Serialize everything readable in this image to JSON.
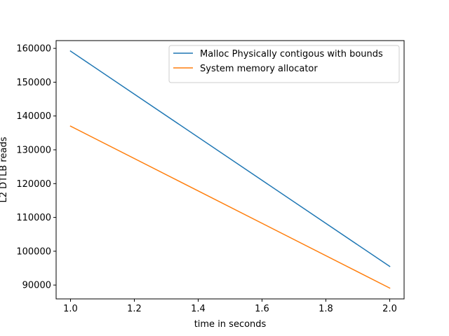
{
  "chart_data": {
    "type": "line",
    "xlabel": "time in seconds",
    "ylabel": "L2 DTLB reads",
    "xlim": [
      0.955,
      2.045
    ],
    "ylim": [
      85900,
      162300
    ],
    "xticks": [
      1.0,
      1.2,
      1.4,
      1.6,
      1.8,
      2.0
    ],
    "xtick_labels": [
      "1.0",
      "1.2",
      "1.4",
      "1.6",
      "1.8",
      "2.0"
    ],
    "yticks": [
      90000,
      100000,
      110000,
      120000,
      130000,
      140000,
      150000,
      160000
    ],
    "ytick_labels": [
      "90000",
      "100000",
      "110000",
      "120000",
      "130000",
      "140000",
      "150000",
      "160000"
    ],
    "legend_position": "top-right",
    "grid": false,
    "series": [
      {
        "name": "Malloc Physically contigous with bounds",
        "color": "#1f77b4",
        "x": [
          1.0,
          2.0
        ],
        "y": [
          159200,
          95500
        ]
      },
      {
        "name": "System memory allocator",
        "color": "#ff7f0e",
        "x": [
          1.0,
          2.0
        ],
        "y": [
          137000,
          89100
        ]
      }
    ]
  }
}
